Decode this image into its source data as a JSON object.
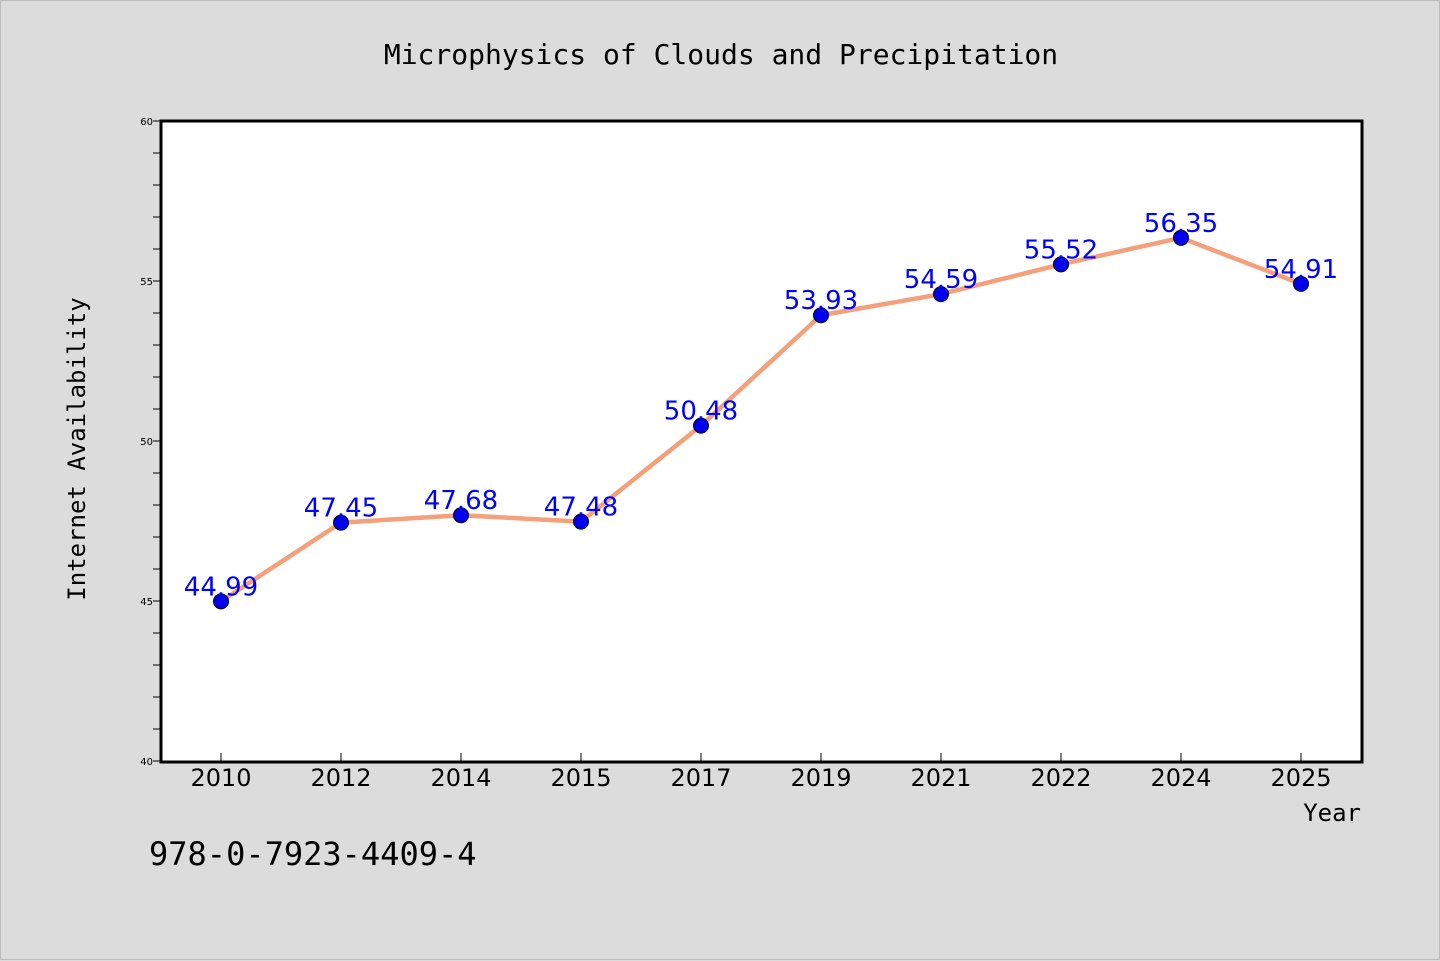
{
  "isbn": "978-0-7923-4409-4",
  "chart_data": {
    "type": "line",
    "title": "Microphysics of Clouds and Precipitation",
    "xlabel": "Year",
    "ylabel": "Internet Availability",
    "categories": [
      "2010",
      "2012",
      "2014",
      "2015",
      "2017",
      "2019",
      "2021",
      "2022",
      "2024",
      "2025"
    ],
    "series": [
      {
        "values": [
          44.99,
          47.45,
          47.68,
          47.48,
          50.48,
          53.93,
          54.59,
          55.52,
          56.35,
          54.91
        ],
        "labels": [
          "44.99",
          "47.45",
          "47.68",
          "47.48",
          "50.48",
          "53.93",
          "54.59",
          "55.52",
          "56.35",
          "54.91"
        ],
        "line_color": "#f4a07a",
        "marker_color": "#0000ee",
        "label_color": "#0000ff"
      }
    ],
    "ylim": [
      40,
      60
    ],
    "yticks": [
      "40",
      "45",
      "50",
      "55",
      "60"
    ],
    "grid": false,
    "legend": false
  }
}
